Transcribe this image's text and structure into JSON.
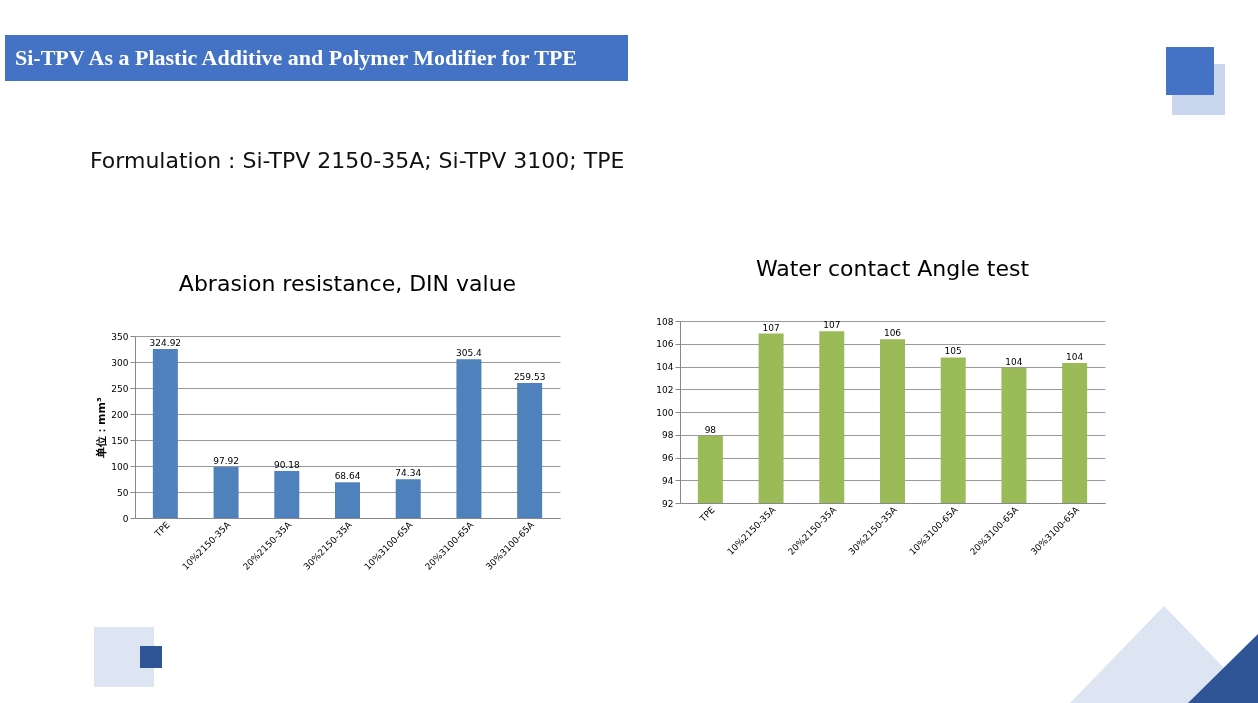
{
  "chart_data": [
    {
      "type": "bar",
      "title": "Abrasion resistance, DIN value",
      "ylabel": "单位：mm³",
      "annotations": [
        "Si-TPV As a Plastic Additive and Polymer Modifier for TPE",
        "Formulation : Si-TPV 2150-35A; Si-TPV 3100; TPE"
      ],
      "categories": [
        "TPE",
        "10%2150-35A",
        "20%2150-35A",
        "30%2150-35A",
        "10%3100-65A",
        "20%3100-65A",
        "30%3100-65A"
      ],
      "values": [
        324.92,
        97.92,
        90.18,
        68.64,
        74.34,
        305.4,
        259.53
      ],
      "color": "#4f81bd",
      "ylim": [
        0,
        350
      ],
      "yticks": [
        0,
        50,
        100,
        150,
        200,
        250,
        300,
        350
      ],
      "grid": "y",
      "data_labels": true
    },
    {
      "type": "bar",
      "title": "Water contact Angle test",
      "categories": [
        "TPE",
        "10%2150-35A",
        "20%2150-35A",
        "30%2150-35A",
        "10%3100-65A",
        "20%3100-65A",
        "30%3100-65A"
      ],
      "values": [
        97.9,
        106.9,
        107.1,
        106.4,
        104.8,
        103.9,
        104.3
      ],
      "value_labels": [
        "98",
        "107",
        "107",
        "106",
        "105",
        "104",
        "104"
      ],
      "color": "#9bbb59",
      "ylim": [
        92,
        108
      ],
      "yticks": [
        92,
        94,
        96,
        98,
        100,
        102,
        104,
        106,
        108
      ],
      "grid": "y"
    }
  ]
}
